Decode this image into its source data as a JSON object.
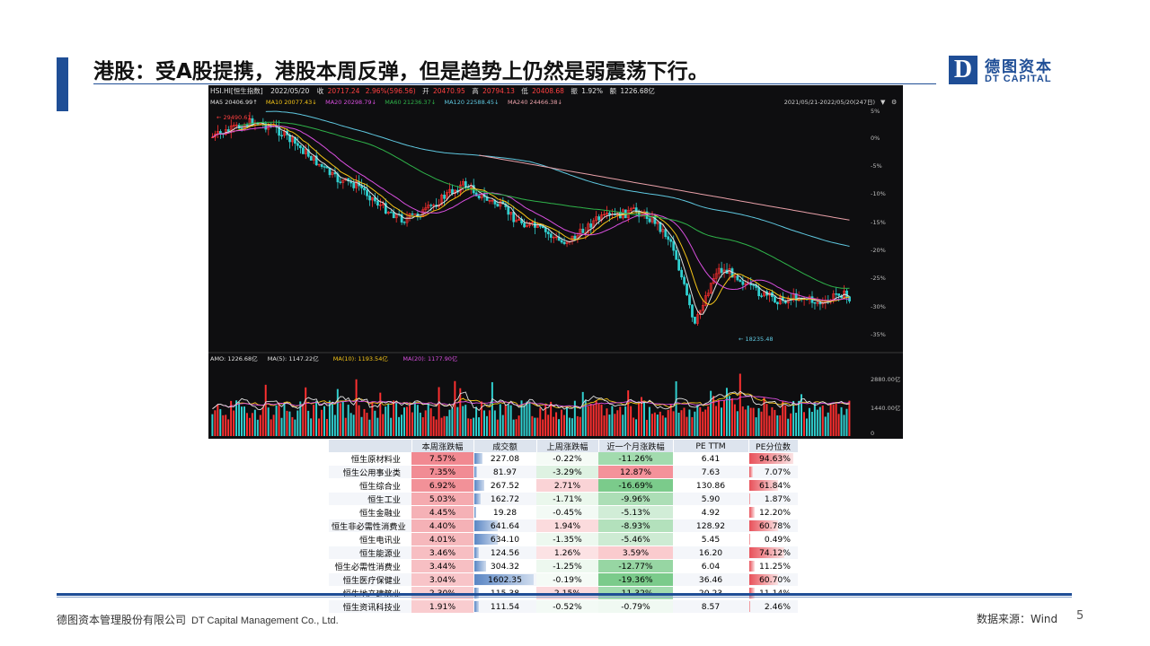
{
  "title": "港股：受A股提携，港股本周反弹，但是趋势上仍然是弱震荡下行。",
  "logo": {
    "mark": "D",
    "cn": "德图资本",
    "en": "DT CAPITAL"
  },
  "chart_header": {
    "name": "HSI.HI[恒生指数]",
    "date": "2022/05/20",
    "close_label": "收",
    "close": "20717.24",
    "change": "2.96%(596.56)",
    "high_label": "开",
    "open": "20470.95",
    "high_label2": "高",
    "high": "20794.13",
    "low_label": "低",
    "low": "20408.68",
    "amp_label": "振",
    "amp": "1.92%",
    "amt_label": "额",
    "amt": "1226.68亿",
    "range": "2021/05/21-2022/05/20(247日)"
  },
  "ma_legend": [
    {
      "label": "MA5",
      "value": "20406.99↑",
      "color": "#e0e0e0"
    },
    {
      "label": "MA10",
      "value": "20077.43↓",
      "color": "#f5c518"
    },
    {
      "label": "MA20",
      "value": "20298.79↓",
      "color": "#d94fe0"
    },
    {
      "label": "MA60",
      "value": "21236.37↓",
      "color": "#2fb34a"
    },
    {
      "label": "MA120",
      "value": "22588.45↓",
      "color": "#5fc8e0"
    },
    {
      "label": "MA240",
      "value": "24466.38↓",
      "color": "#e8a0a8"
    }
  ],
  "chart_annotations": {
    "high": "29490.61",
    "low": "18235.48"
  },
  "y_ticks": [
    "5%",
    "0%",
    "-5%",
    "-10%",
    "-15%",
    "-20%",
    "-25%",
    "-30%",
    "-35%"
  ],
  "amo_legend": [
    {
      "label": "AMO: 1226.68亿",
      "color": "#e0e0e0"
    },
    {
      "label": "MA(5): 1147.22亿",
      "color": "#e0e0e0"
    },
    {
      "label": "MA(10): 1193.54亿",
      "color": "#f5c518"
    },
    {
      "label": "MA(20): 1177.90亿",
      "color": "#d94fe0"
    }
  ],
  "amo_ticks": [
    "2880.00亿",
    "1440.00亿",
    "0"
  ],
  "table": {
    "headers": [
      "",
      "本周涨跌幅",
      "成交额",
      "上周涨跌幅",
      "近一个月涨跌幅",
      "PE TTM",
      "PE分位数"
    ],
    "rows": [
      {
        "name": "恒生原材料业",
        "week": "7.57%",
        "amount": "227.08",
        "amt_v": 227.08,
        "last": "-0.22%",
        "month": "-11.26%",
        "pe": "6.41",
        "pct": "94.63%",
        "pct_v": 94.63
      },
      {
        "name": "恒生公用事业类",
        "week": "7.35%",
        "amount": "81.97",
        "amt_v": 81.97,
        "last": "-3.29%",
        "month": "12.87%",
        "pe": "7.63",
        "pct": "7.07%",
        "pct_v": 7.07
      },
      {
        "name": "恒生综合业",
        "week": "6.92%",
        "amount": "267.52",
        "amt_v": 267.52,
        "last": "2.71%",
        "month": "-16.69%",
        "pe": "130.86",
        "pct": "61.84%",
        "pct_v": 61.84
      },
      {
        "name": "恒生工业",
        "week": "5.03%",
        "amount": "162.72",
        "amt_v": 162.72,
        "last": "-1.71%",
        "month": "-9.96%",
        "pe": "5.90",
        "pct": "1.87%",
        "pct_v": 1.87
      },
      {
        "name": "恒生金融业",
        "week": "4.45%",
        "amount": "19.28",
        "amt_v": 19.28,
        "last": "-0.45%",
        "month": "-5.13%",
        "pe": "4.92",
        "pct": "12.20%",
        "pct_v": 12.2
      },
      {
        "name": "恒生非必需性消费业",
        "week": "4.40%",
        "amount": "641.64",
        "amt_v": 641.64,
        "last": "1.94%",
        "month": "-8.93%",
        "pe": "128.92",
        "pct": "60.78%",
        "pct_v": 60.78
      },
      {
        "name": "恒生电讯业",
        "week": "4.01%",
        "amount": "634.10",
        "amt_v": 634.1,
        "last": "-1.35%",
        "month": "-5.46%",
        "pe": "5.45",
        "pct": "0.49%",
        "pct_v": 0.49
      },
      {
        "name": "恒生能源业",
        "week": "3.46%",
        "amount": "124.56",
        "amt_v": 124.56,
        "last": "1.26%",
        "month": "3.59%",
        "pe": "16.20",
        "pct": "74.12%",
        "pct_v": 74.12
      },
      {
        "name": "恒生必需性消费业",
        "week": "3.44%",
        "amount": "304.32",
        "amt_v": 304.32,
        "last": "-1.25%",
        "month": "-12.77%",
        "pe": "6.04",
        "pct": "11.25%",
        "pct_v": 11.25
      },
      {
        "name": "恒生医疗保健业",
        "week": "3.04%",
        "amount": "1602.35",
        "amt_v": 1602.35,
        "last": "-0.19%",
        "month": "-19.36%",
        "pe": "36.46",
        "pct": "60.70%",
        "pct_v": 60.7
      },
      {
        "name": "恒生地产建筑业",
        "week": "2.30%",
        "amount": "115.38",
        "amt_v": 115.38,
        "last": "2.15%",
        "month": "-11.32%",
        "pe": "20.23",
        "pct": "11.14%",
        "pct_v": 11.14
      },
      {
        "name": "恒生资讯科技业",
        "week": "1.91%",
        "amount": "111.54",
        "amt_v": 111.54,
        "last": "-0.52%",
        "month": "-0.79%",
        "pe": "8.57",
        "pct": "2.46%",
        "pct_v": 2.46
      }
    ]
  },
  "footer": {
    "company_cn": "德图资本管理股份有限公司",
    "company_en": "DT Capital Management Co., Ltd.",
    "source": "数据来源：Wind",
    "page": "5"
  }
}
